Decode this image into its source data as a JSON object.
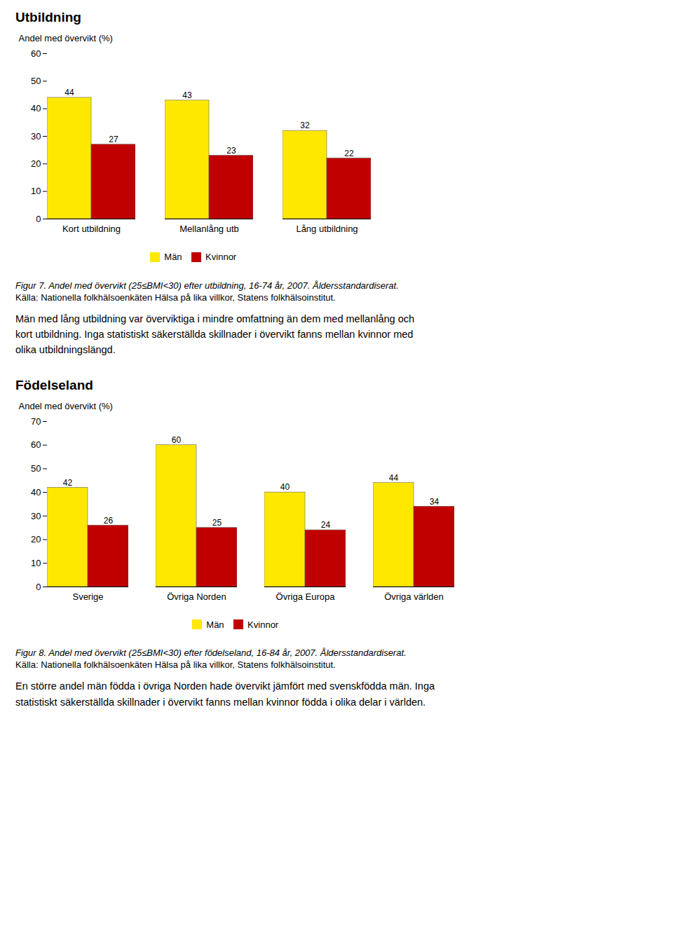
{
  "chart_data": [
    {
      "type": "bar",
      "title": "Utbildning",
      "ylabel": "Andel med övervikt (%)",
      "categories": [
        "Kort utbildning",
        "Mellanlång utb",
        "Lång utbildning"
      ],
      "series": [
        {
          "name": "Män",
          "color": "#FFE800",
          "values": [
            44,
            43,
            32
          ]
        },
        {
          "name": "Kvinnor",
          "color": "#C00000",
          "values": [
            27,
            23,
            22
          ]
        }
      ],
      "ylim": [
        0,
        60
      ],
      "yticks": [
        0,
        10,
        20,
        30,
        40,
        50,
        60
      ],
      "grid": false,
      "legend": "bottom",
      "data_labels": true,
      "caption": "Figur 7. Andel med övervikt (25≤BMI<30) efter utbildning, 16-74 år, 2007. Åldersstandardiserat.",
      "source": "Källa: Nationella folkhälsoenkäten Hälsa på lika villkor, Statens folkhälsoinstitut.",
      "annotations": [
        "Män med lång utbildning var överviktiga i mindre omfattning än dem med mellanlång och",
        "kort utbildning. Inga statistiskt säkerställda skillnader i övervikt fanns mellan kvinnor med",
        "olika utbildningslängd."
      ]
    },
    {
      "type": "bar",
      "title": "Födelseland",
      "ylabel": "Andel med övervikt (%)",
      "categories": [
        "Sverige",
        "Övriga Norden",
        "Övriga Europa",
        "Övriga världen"
      ],
      "series": [
        {
          "name": "Män",
          "color": "#FFE800",
          "values": [
            42,
            60,
            40,
            44
          ]
        },
        {
          "name": "Kvinnor",
          "color": "#C00000",
          "values": [
            26,
            25,
            24,
            34
          ]
        }
      ],
      "ylim": [
        0,
        70
      ],
      "yticks": [
        0,
        10,
        20,
        30,
        40,
        50,
        60,
        70
      ],
      "grid": false,
      "legend": "bottom",
      "data_labels": true,
      "caption": "Figur 8. Andel med övervikt (25≤BMI<30) efter födelseland, 16-84 år, 2007. Åldersstandardiserat.",
      "source": "Källa: Nationella folkhälsoenkäten Hälsa på lika villkor, Statens folkhälsoinstitut.",
      "annotations": [
        "En större andel män födda i övriga Norden hade övervikt jämfört med svenskfödda män. Inga",
        "statistiskt säkerställda skillnader i övervikt fanns mellan kvinnor födda i olika delar i världen."
      ]
    }
  ]
}
